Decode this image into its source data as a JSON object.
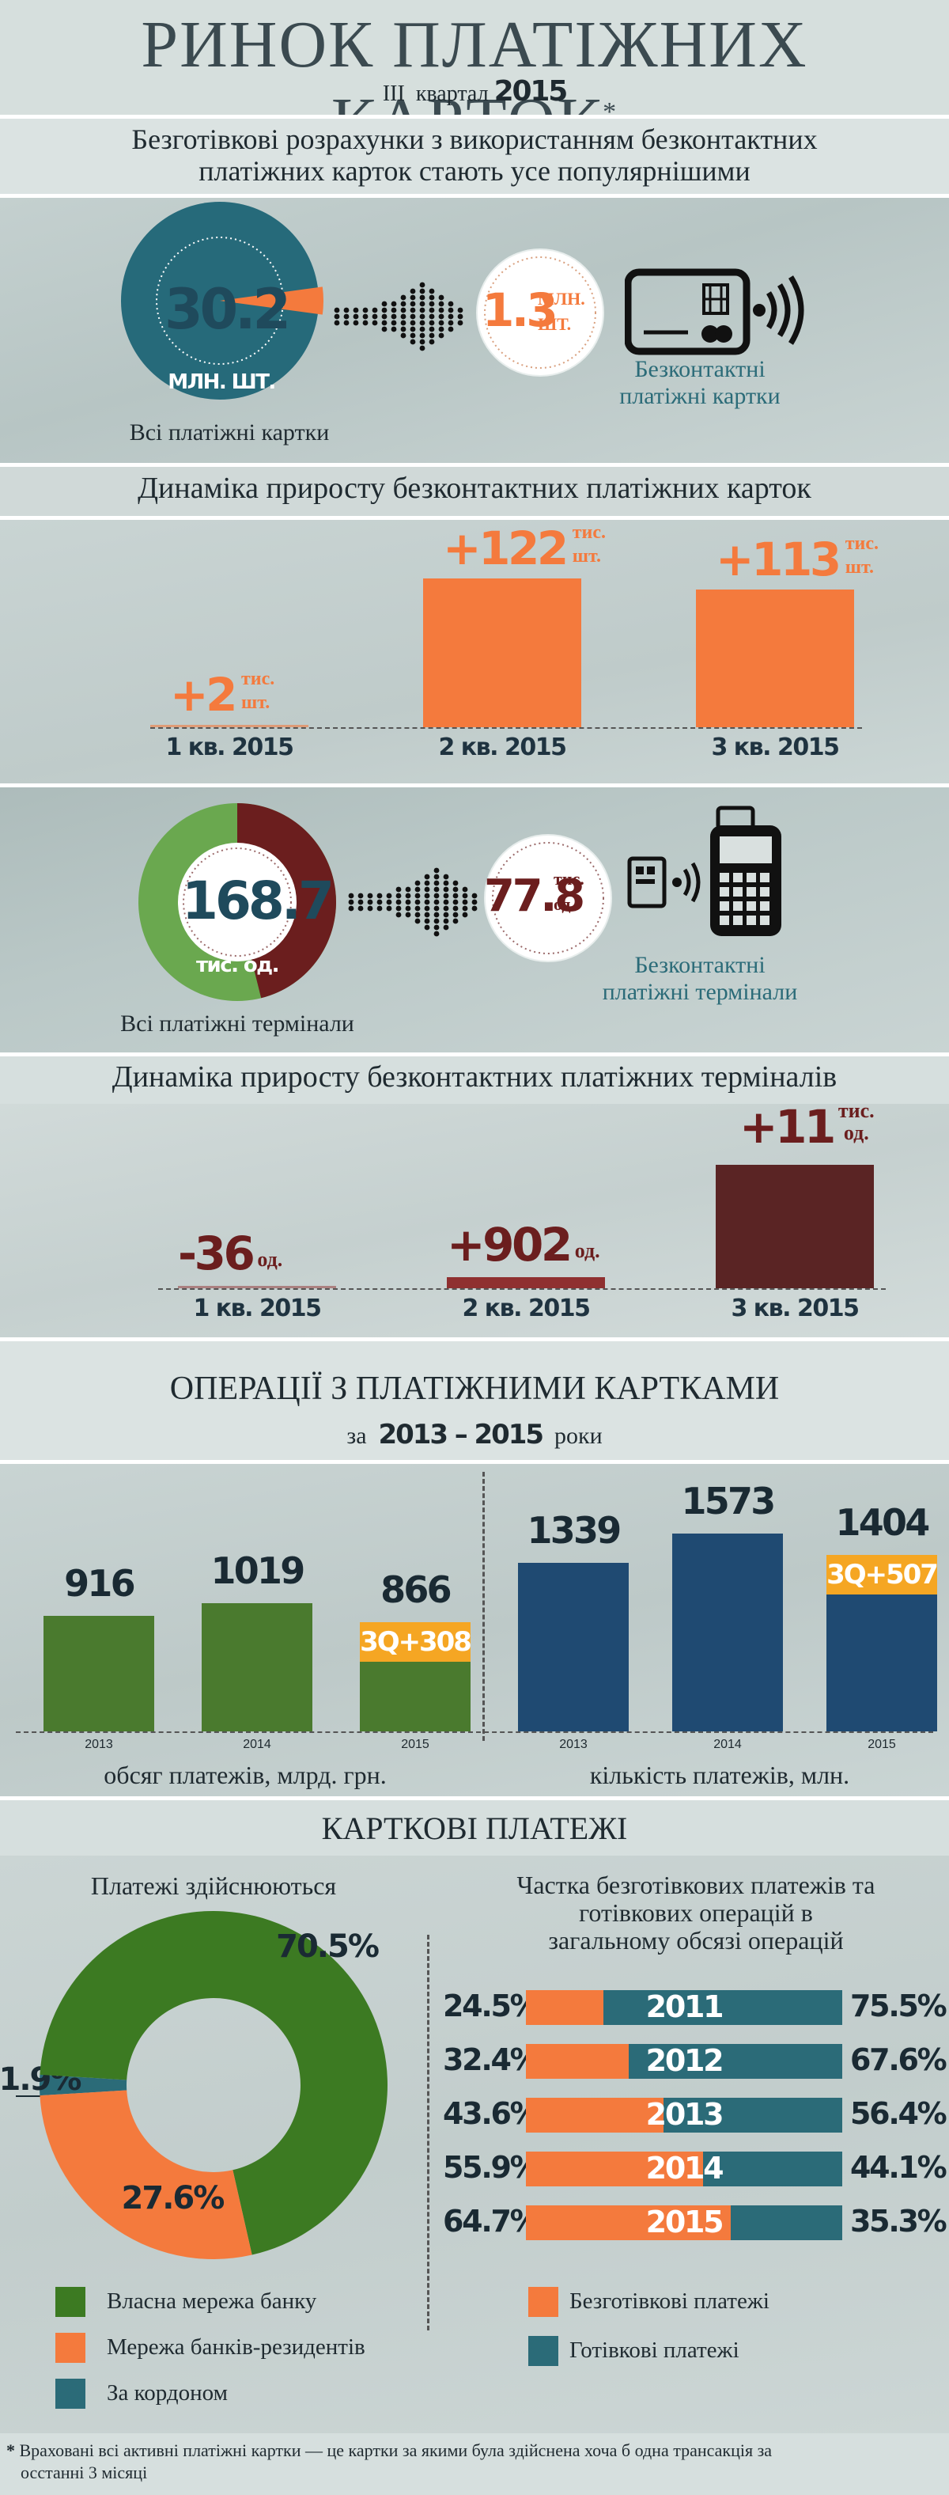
{
  "header": {
    "title": "РИНОК ПЛАТІЖНИХ КАРТОК",
    "title_mark": "*",
    "period_roman": "III",
    "period_word": "квартал",
    "period_year": "2015"
  },
  "section1": {
    "heading_line1": "Безготівкові розрахунки з використанням безконтактних",
    "heading_line2": "платіжних карток стають усе популярнішими",
    "total_value": "30.2",
    "total_unit": "МЛН. ШТ.",
    "total_caption": "Всі платіжні картки",
    "contactless_value": "1.3",
    "contactless_unit1": "МЛН.",
    "contactless_unit2": "ШТ.",
    "contactless_caption1": "Безконтактні",
    "contactless_caption2": "платіжні картки",
    "icon": "contactless-card-icon"
  },
  "section2": {
    "heading": "Динаміка приросту безконтактних платіжних карток",
    "bars": [
      {
        "value": "+2",
        "unit1": "тис.",
        "unit2": "шт.",
        "label": "1 кв. 2015"
      },
      {
        "value": "+122",
        "unit1": "тис.",
        "unit2": "шт.",
        "label": "2 кв. 2015"
      },
      {
        "value": "+113",
        "unit1": "тис.",
        "unit2": "шт.",
        "label": "3 кв. 2015"
      }
    ]
  },
  "section3": {
    "total_value": "168.7",
    "total_unit": "тис. од.",
    "total_caption": "Всі платіжні термінали",
    "contactless_value": "77.8",
    "contactless_unit1": "тис.",
    "contactless_unit2": "од.",
    "contactless_caption1": "Безконтактні",
    "contactless_caption2": "платіжні термінали",
    "icon": "pos-terminal-icon",
    "share": 0.461
  },
  "section4": {
    "heading": "Динаміка приросту безконтактних платіжних терміналів",
    "bars": [
      {
        "value": "-36",
        "unit1": "од.",
        "unit2": "",
        "label": "1 кв. 2015"
      },
      {
        "value": "+902",
        "unit1": "од.",
        "unit2": "",
        "label": "2 кв. 2015"
      },
      {
        "value": "+11",
        "unit1": "тис.",
        "unit2": "од.",
        "label": "3 кв. 2015"
      }
    ]
  },
  "section5": {
    "heading": "ОПЕРАЦІЇ З ПЛАТІЖНИМИ КАРТКАМИ",
    "sub_prefix": "за",
    "sub_years": "2013 – 2015",
    "sub_suffix": "роки",
    "left_caption": "обсяг платежів, млрд. грн.",
    "right_caption": "кількість платежів, млн.",
    "left_badge": "3Q+308",
    "right_badge": "3Q+507"
  },
  "section6": {
    "heading": "КАРТКОВІ ПЛАТЕЖІ",
    "left_title": "Платежі здійснюються",
    "right_title_line1": "Частка безготівкових платежів та",
    "right_title_line2": "готівкових операцій в",
    "right_title_line3": "загальному обсязі операцій",
    "legend_left": [
      {
        "label": "Власна мережа банку",
        "color": "#3c7a22"
      },
      {
        "label": "Мережа банків-резидентів",
        "color": "#f47a3d"
      },
      {
        "label": "За кордоном",
        "color": "#2b6b78"
      }
    ],
    "legend_right": [
      {
        "label": "Безготівкові платежі",
        "color": "#f47a3d"
      },
      {
        "label": "Готівкові платежі",
        "color": "#2b6b78"
      }
    ]
  },
  "footnote": {
    "mark": "*",
    "line1": "Враховані всі активні платіжні картки — це картки за якими була здійснена хоча б одна трансакція за",
    "line2": "осстанні 3 місяці"
  },
  "chart_data": [
    {
      "type": "pie",
      "title": "",
      "categories": [
        "Всі платіжні картки",
        "Безконтактні платіжні картки"
      ],
      "values": [
        30.2,
        1.3
      ],
      "unit": "млн. шт."
    },
    {
      "type": "bar",
      "title": "Динаміка приросту безконтактних платіжних карток",
      "categories": [
        "1 кв. 2015",
        "2 кв. 2015",
        "3 кв. 2015"
      ],
      "values": [
        2,
        122,
        113
      ],
      "unit": "тис. шт.",
      "ylim": [
        0,
        130
      ],
      "colors": {
        "bar": "#f47a3d"
      }
    },
    {
      "type": "pie",
      "title": "",
      "categories": [
        "Всі платіжні термінали",
        "Безконтактні платіжні термінали"
      ],
      "values": [
        168.7,
        77.8
      ],
      "unit": "тис. од.",
      "colors": {
        "all": "#6aa84f",
        "contactless": "#6b1e1e"
      }
    },
    {
      "type": "bar",
      "title": "Динаміка приросту безконтактних платіжних терміналів",
      "categories": [
        "1 кв. 2015",
        "2 кв. 2015",
        "3 кв. 2015"
      ],
      "values": [
        -36,
        902,
        11000
      ],
      "value_labels": [
        "-36 од.",
        "+902 од.",
        "+11 тис. од."
      ],
      "colors": {
        "bar": "#5a2424"
      }
    },
    {
      "type": "bar",
      "title": "обсяг платежів, млрд. грн.",
      "categories": [
        "2013",
        "2014",
        "2015"
      ],
      "values": [
        916,
        1019,
        866
      ],
      "ylim": [
        0,
        1600
      ],
      "colors": {
        "bar": "#4a7a2e",
        "badge": "#f5a623"
      }
    },
    {
      "type": "bar",
      "title": "кількість платежів, млн.",
      "categories": [
        "2013",
        "2014",
        "2015"
      ],
      "values": [
        1339,
        1573,
        1404
      ],
      "ylim": [
        0,
        1600
      ],
      "colors": {
        "bar": "#1f4a72",
        "badge": "#f5a623"
      }
    },
    {
      "type": "pie",
      "title": "Платежі здійснюються",
      "categories": [
        "Власна мережа банку",
        "Мережа банків-резидентів",
        "За кордоном"
      ],
      "values": [
        70.5,
        27.6,
        1.9
      ],
      "labels": [
        "70.5%",
        "27.6%",
        "1.9%"
      ],
      "colors": [
        "#3c7a22",
        "#f47a3d",
        "#2b6b78"
      ]
    },
    {
      "type": "bar",
      "stacked": true,
      "orientation": "horizontal",
      "title": "Частка безготівкових платежів та готівкових операцій в загальному обсязі операцій",
      "categories": [
        "2011",
        "2012",
        "2013",
        "2014",
        "2015"
      ],
      "series": [
        {
          "name": "Безготівкові платежі",
          "values": [
            24.5,
            32.4,
            43.6,
            55.9,
            64.7
          ],
          "labels": [
            "24.5%",
            "32.4%",
            "43.6%",
            "55.9%",
            "64.7%"
          ]
        },
        {
          "name": "Готівкові платежі",
          "values": [
            75.5,
            67.6,
            56.4,
            44.1,
            35.3
          ],
          "labels": [
            "75.5%",
            "67.6%",
            "56.4%",
            "44.1%",
            "35.3%"
          ]
        }
      ],
      "colors": [
        "#f47a3d",
        "#2b6b78"
      ]
    }
  ]
}
